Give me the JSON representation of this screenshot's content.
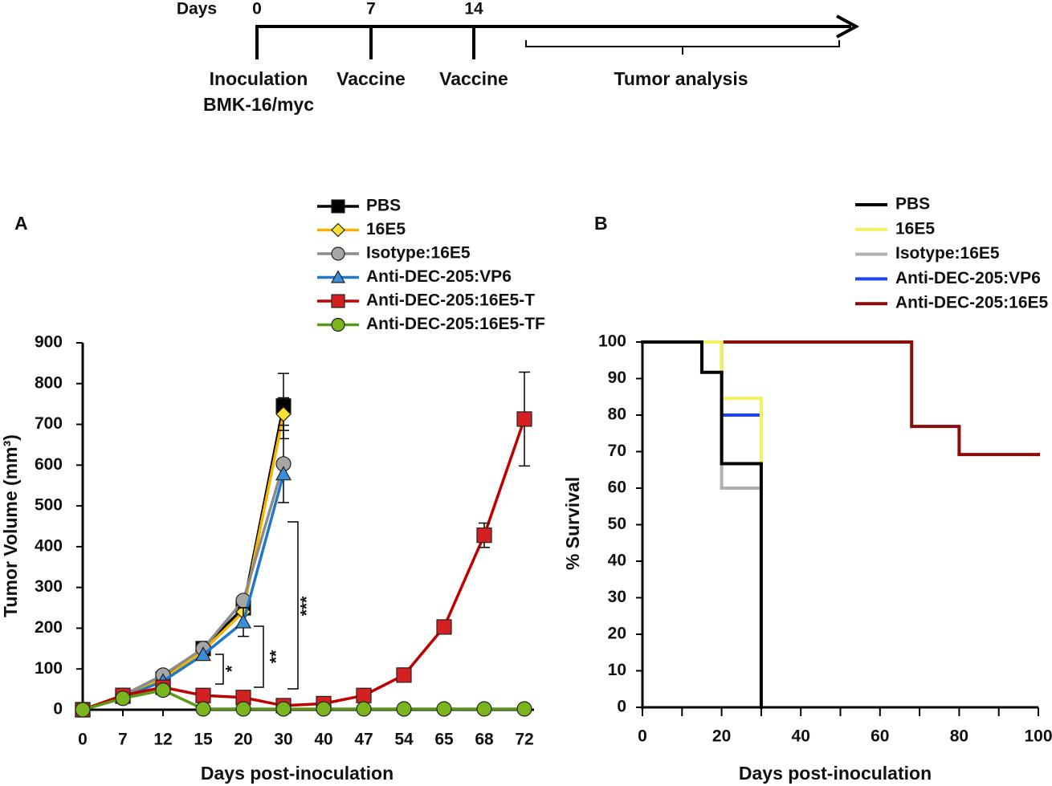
{
  "timeline": {
    "unit": "Days",
    "marks": [
      "0",
      "7",
      "14"
    ],
    "events": [
      [
        "Inoculation",
        "BMK-16/myc"
      ],
      [
        "Vaccine"
      ],
      [
        "Vaccine"
      ],
      [
        "Tumor analysis"
      ]
    ]
  },
  "chart_data": [
    {
      "type": "line",
      "panel": "A",
      "x_label": "Days post-inoculation",
      "y_label": "Tumor Volume (mm³)",
      "categories": [
        "0",
        "7",
        "12",
        "15",
        "20",
        "30",
        "40",
        "47",
        "54",
        "65",
        "68",
        "72"
      ],
      "ylim": [
        0,
        900
      ],
      "yticks": [
        0,
        100,
        200,
        300,
        400,
        500,
        600,
        700,
        800,
        900
      ],
      "annotations": [
        "*",
        "**",
        "***"
      ],
      "series": [
        {
          "name": "PBS",
          "color": "#000000",
          "marker": "square",
          "marker_fill": "#000000",
          "values": [
            0,
            35,
            75,
            150,
            250,
            745,
            null,
            null,
            null,
            null,
            null,
            null
          ],
          "errors": [
            null,
            null,
            null,
            null,
            null,
            80,
            null,
            null,
            null,
            null,
            null,
            null
          ]
        },
        {
          "name": "16E5",
          "color": "#f5b400",
          "marker": "diamond",
          "marker_fill": "#ffe033",
          "values": [
            0,
            35,
            75,
            145,
            240,
            725,
            null,
            null,
            null,
            null,
            null,
            null
          ],
          "errors": [
            null,
            null,
            null,
            null,
            null,
            40,
            null,
            null,
            null,
            null,
            null,
            null
          ]
        },
        {
          "name": "Isotype:16E5",
          "color": "#8c8c8c",
          "marker": "circle",
          "marker_fill": "#a6a6a6",
          "values": [
            0,
            35,
            85,
            150,
            268,
            603,
            null,
            null,
            null,
            null,
            null,
            null
          ],
          "errors": [
            null,
            null,
            null,
            null,
            null,
            95,
            null,
            null,
            null,
            null,
            null,
            null
          ]
        },
        {
          "name": "Anti-DEC-205:VP6",
          "color": "#1f78c8",
          "marker": "triangle",
          "marker_fill": "#3a8fd9",
          "values": [
            0,
            30,
            70,
            135,
            215,
            578,
            null,
            null,
            null,
            null,
            null,
            null
          ],
          "errors": [
            null,
            null,
            null,
            null,
            35,
            null,
            null,
            null,
            null,
            null,
            null,
            null
          ]
        },
        {
          "name": "Anti-DEC-205:16E5-T",
          "color": "#c00000",
          "marker": "square",
          "marker_fill": "#d42020",
          "values": [
            0,
            35,
            55,
            35,
            30,
            10,
            15,
            35,
            85,
            203,
            428,
            713
          ],
          "errors": [
            null,
            null,
            null,
            null,
            null,
            null,
            null,
            null,
            null,
            null,
            30,
            115
          ]
        },
        {
          "name": "Anti-DEC-205:16E5-TF",
          "color": "#5a9a1a",
          "marker": "circle",
          "marker_fill": "#7ab51d",
          "values": [
            0,
            28,
            48,
            2,
            2,
            2,
            2,
            2,
            2,
            2,
            2,
            2
          ],
          "errors": [
            null,
            null,
            null,
            null,
            null,
            null,
            null,
            null,
            null,
            null,
            null,
            null
          ]
        }
      ]
    },
    {
      "type": "step",
      "panel": "B",
      "x_label": "Days post-inoculation",
      "y_label": "% Survival",
      "xlim": [
        0,
        100
      ],
      "xticks": [
        0,
        20,
        40,
        60,
        80,
        100
      ],
      "xminor_ticks": [
        10,
        30,
        50,
        70,
        90
      ],
      "ylim": [
        0,
        100
      ],
      "yticks": [
        0,
        10,
        20,
        30,
        40,
        50,
        60,
        70,
        80,
        90,
        100
      ],
      "series": [
        {
          "name": "PBS",
          "color": "#000000",
          "x": [
            0,
            15,
            20,
            30
          ],
          "values": [
            100,
            91.7,
            66.7,
            0
          ]
        },
        {
          "name": "16E5",
          "color": "#f0f060",
          "x": [
            0,
            20,
            30
          ],
          "values": [
            100,
            84.6,
            66.7
          ]
        },
        {
          "name": "Isotype:16E5",
          "color": "#b0b0b0",
          "x": [
            0,
            20,
            30
          ],
          "values": [
            100,
            60,
            60
          ]
        },
        {
          "name": "Anti-DEC-205:VP6",
          "color": "#1e40ff",
          "x": [
            0,
            20,
            30
          ],
          "values": [
            100,
            80,
            80
          ]
        },
        {
          "name": "Anti-DEC-205:16E5",
          "color": "#8b0a0a",
          "x": [
            0,
            68,
            80,
            100
          ],
          "values": [
            100,
            76.9,
            69.2,
            69.2
          ]
        }
      ]
    }
  ]
}
